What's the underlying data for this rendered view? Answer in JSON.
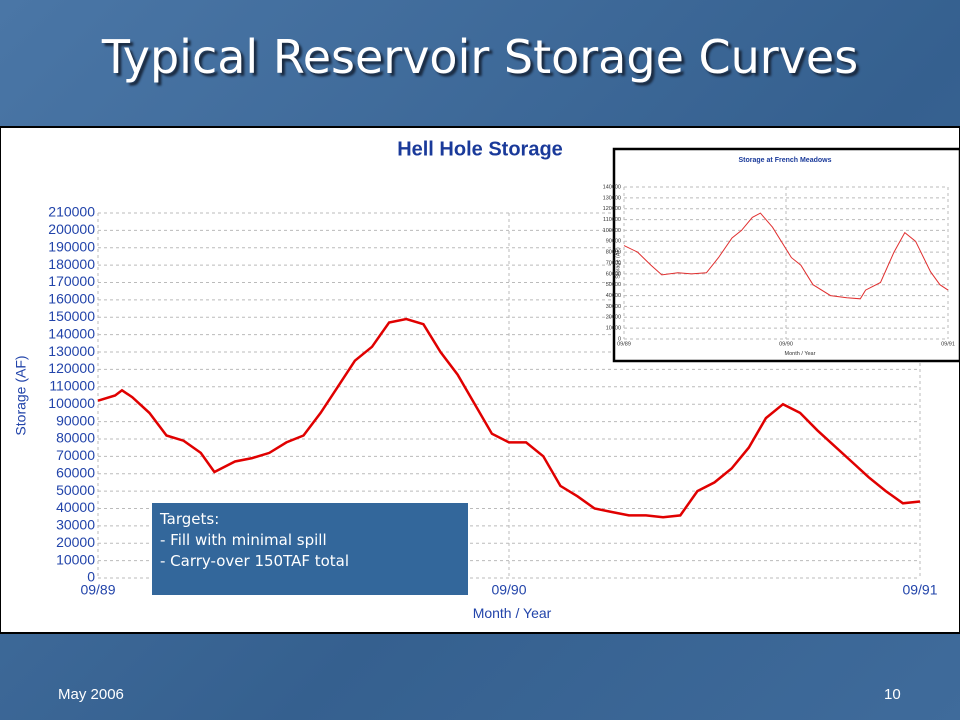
{
  "slide": {
    "title": "Typical Reservoir Storage Curves",
    "date": "May 2006",
    "page": "10"
  },
  "callout": {
    "heading": "Targets:",
    "items": [
      "-  Fill with minimal spill",
      "-  Carry-over 150TAF total"
    ]
  },
  "chart_data": [
    {
      "type": "line",
      "title": "Hell Hole Storage",
      "x_label": "Month / Year",
      "y_label": "Storage (AF)",
      "color": "#e00000",
      "grid": true,
      "x": [
        0,
        0.5,
        0.7,
        1,
        1.5,
        2,
        2.5,
        3,
        3.4,
        4,
        4.5,
        5,
        5.5,
        6,
        6.5,
        7,
        7.5,
        8,
        8.5,
        9,
        9.5,
        10,
        10.5,
        11,
        11.5,
        12,
        12.5,
        13,
        13.5,
        14,
        14.5,
        15,
        15.5,
        16,
        16.5,
        17,
        17.5,
        18,
        18.5,
        19,
        19.5,
        20,
        20.5,
        21,
        21.5,
        22,
        22.5,
        23,
        23.5,
        24
      ],
      "values": [
        102000,
        105000,
        108000,
        104000,
        95000,
        82000,
        79000,
        72000,
        61000,
        67000,
        69000,
        72000,
        78000,
        82000,
        95000,
        110000,
        125000,
        133000,
        147000,
        149000,
        146000,
        130000,
        117000,
        100000,
        83000,
        78000,
        78000,
        70000,
        53000,
        47000,
        40000,
        38000,
        36000,
        36000,
        35000,
        36000,
        50000,
        55000,
        63000,
        75000,
        92000,
        100000,
        95000,
        85000,
        76000,
        67000,
        58000,
        50000,
        43000,
        44000
      ],
      "xlim": [
        0,
        24
      ],
      "xticks": [
        {
          "value": 0,
          "label": "09/89"
        },
        {
          "value": 12,
          "label": "09/90"
        },
        {
          "value": 24,
          "label": "09/91"
        }
      ],
      "ylim": [
        0,
        210000
      ],
      "yticks": [
        0,
        10000,
        20000,
        30000,
        40000,
        50000,
        60000,
        70000,
        80000,
        90000,
        100000,
        110000,
        120000,
        130000,
        140000,
        150000,
        160000,
        170000,
        180000,
        190000,
        200000,
        210000
      ]
    },
    {
      "type": "line",
      "title": "Storage at French Meadows",
      "x_label": "Month / Year",
      "y_label": "Storage (AF)",
      "color": "#e03030",
      "grid": true,
      "x": [
        0,
        1,
        2,
        2.8,
        4,
        5,
        6.1,
        7,
        8,
        8.7,
        9.5,
        10.1,
        11,
        12.4,
        13.1,
        14,
        15.3,
        16.5,
        17.5,
        17.9,
        19,
        20,
        20.8,
        21.6,
        22.7,
        23.4,
        24
      ],
      "values": [
        86000,
        80000,
        68000,
        59000,
        61000,
        60000,
        61000,
        75000,
        93000,
        100000,
        112000,
        116000,
        103000,
        75000,
        68000,
        50000,
        40000,
        38000,
        37000,
        45000,
        52000,
        80000,
        98000,
        90000,
        62000,
        50000,
        45000
      ],
      "xlim": [
        0,
        24
      ],
      "xticks": [
        {
          "value": 0,
          "label": "09/89"
        },
        {
          "value": 12,
          "label": "09/90"
        },
        {
          "value": 24,
          "label": "09/91"
        }
      ],
      "ylim": [
        0,
        140000
      ],
      "yticks": [
        0,
        10000,
        20000,
        30000,
        40000,
        50000,
        60000,
        70000,
        80000,
        90000,
        100000,
        110000,
        120000,
        130000,
        140000
      ]
    }
  ]
}
